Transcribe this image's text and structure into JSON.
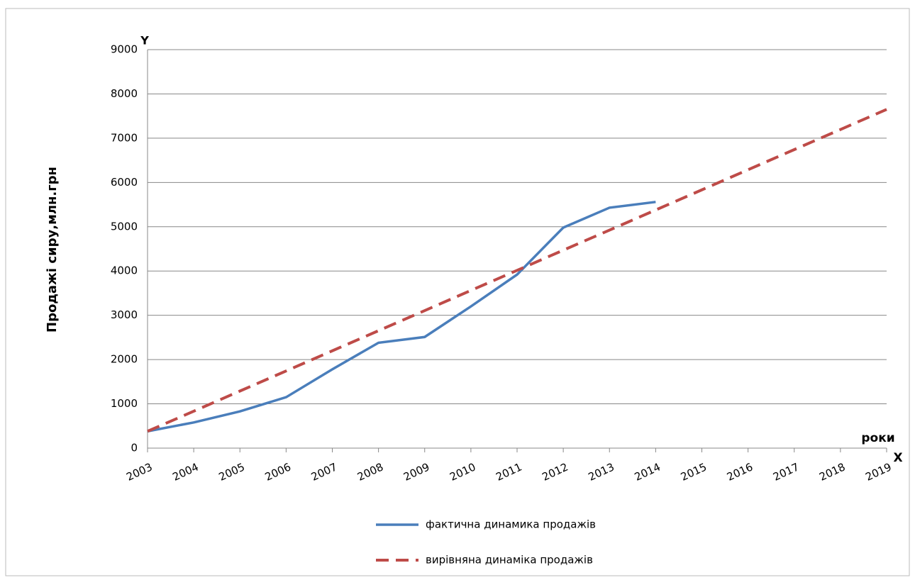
{
  "chart_data": {
    "type": "line",
    "y_label": "Продажі сиру,млн.грн",
    "y_axis_name": "Y",
    "x_label": "роки",
    "x_axis_name": "X",
    "categories": [
      "2003",
      "2004",
      "2005",
      "2006",
      "2007",
      "2008",
      "2009",
      "2010",
      "2011",
      "2012",
      "2013",
      "2014",
      "2015",
      "2016",
      "2017",
      "2018",
      "2019"
    ],
    "series": [
      {
        "name": "фактична динамика продажів",
        "color": "#4a7ebb",
        "dash": false,
        "values": [
          380,
          580,
          830,
          1150,
          1780,
          2380,
          2510,
          3200,
          3920,
          4980,
          5430,
          5560,
          null,
          null,
          null,
          null,
          null
        ]
      },
      {
        "name": "вирівняна динаміка продажів",
        "color": "#be4b48",
        "dash": true,
        "values": [
          380,
          834,
          1289,
          1743,
          2198,
          2652,
          3106,
          3561,
          4015,
          4470,
          4924,
          5378,
          5833,
          6287,
          6742,
          7196,
          7650
        ]
      }
    ],
    "ylim": [
      0,
      9000
    ],
    "yticks": [
      0,
      1000,
      2000,
      3000,
      4000,
      5000,
      6000,
      7000,
      8000,
      9000
    ],
    "grid": true,
    "legend": "bottom"
  }
}
